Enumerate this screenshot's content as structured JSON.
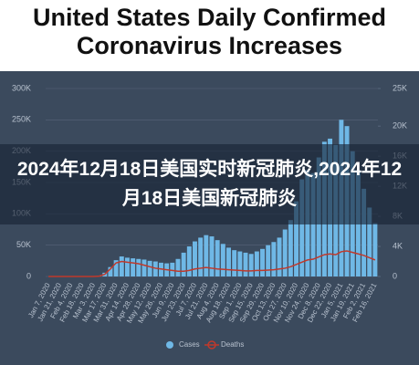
{
  "chart_data": {
    "type": "bar-line",
    "title": "United States Daily Confirmed Coronavirus Increases",
    "categories": [
      "Jan 7, 2020",
      null,
      "Jan 21, 2020",
      null,
      "Feb 4, 2020",
      null,
      "Feb 18, 2020",
      null,
      "Mar 3, 2020",
      null,
      "Mar 17, 2020",
      null,
      "Mar 31, 2020",
      null,
      "Apr 14, 2020",
      null,
      "Apr 28, 2020",
      null,
      "May 12, 2020",
      null,
      "May 26, 2020",
      null,
      "Jun 9, 2020",
      null,
      "Jun 23, 2020",
      null,
      "Jul 7, 2020",
      null,
      "Jul 21, 2020",
      null,
      "Aug 4, 2020",
      null,
      "Aug 18, 2020",
      null,
      "Sep 1, 2020",
      null,
      "Sep 15, 2020",
      null,
      "Sep 29, 2020",
      null,
      "Oct 13, 2020",
      null,
      "Oct 27, 2020",
      null,
      "Nov 10, 2020",
      null,
      "Nov 24, 2020",
      null,
      "Dec 8, 2020",
      null,
      "Dec 22, 2020",
      null,
      "Jan 5, 2021",
      null,
      "Jan 19, 2021",
      null,
      "Feb 2, 2021",
      null,
      "Feb 16, 2021"
    ],
    "series": [
      {
        "name": "Cases",
        "color": "#6fb8e6",
        "kind": "bar",
        "values": [
          0,
          0,
          0,
          0,
          0,
          0,
          0,
          0,
          100,
          1000,
          6000,
          15000,
          26000,
          32000,
          30000,
          29000,
          28000,
          27000,
          25000,
          24000,
          22000,
          21000,
          22000,
          28000,
          38000,
          48000,
          56000,
          62000,
          66000,
          64000,
          58000,
          52000,
          46000,
          42000,
          40000,
          38000,
          36000,
          40000,
          44000,
          50000,
          55000,
          62000,
          75000,
          90000,
          120000,
          155000,
          170000,
          165000,
          190000,
          215000,
          220000,
          210000,
          250000,
          240000,
          200000,
          170000,
          140000,
          110000,
          85000
        ]
      },
      {
        "name": "Deaths",
        "color": "#c0392b",
        "kind": "line",
        "axis": "y2",
        "values": [
          0,
          0,
          0,
          0,
          0,
          0,
          0,
          0,
          0,
          50,
          300,
          1000,
          1800,
          2000,
          1900,
          1800,
          1700,
          1500,
          1300,
          1100,
          1000,
          900,
          800,
          700,
          700,
          800,
          1000,
          1100,
          1200,
          1100,
          1000,
          950,
          900,
          850,
          800,
          750,
          750,
          800,
          800,
          850,
          900,
          1000,
          1100,
          1300,
          1600,
          1900,
          2200,
          2300,
          2600,
          2900,
          3000,
          2900,
          3300,
          3400,
          3200,
          3000,
          2800,
          2500,
          2200
        ]
      }
    ],
    "ylim": [
      0,
      300000
    ],
    "yticks": [
      0,
      {
        "value": 50000,
        "label": "50K"
      },
      {
        "value": 100000,
        "label": "100K"
      },
      {
        "value": 150000,
        "label": "150K"
      },
      {
        "value": 200000,
        "label": "200K"
      },
      {
        "value": 250000,
        "label": "250K"
      },
      {
        "value": 300000,
        "label": "300K"
      }
    ],
    "y2lim": [
      0,
      25000
    ],
    "y2ticks": [
      0,
      {
        "value": 4000,
        "label": "4K"
      },
      {
        "value": 8000,
        "label": "8K"
      },
      {
        "value": 12000,
        "label": "12K"
      },
      {
        "value": 16000,
        "label": "16K"
      },
      {
        "value": 20000,
        "label": "20K"
      },
      {
        "value": 25000,
        "label": "25K"
      }
    ],
    "grid": true
  },
  "banner_text": "2024年12月18日美国实时新冠肺炎,2024年12月18日美国新冠肺炎"
}
